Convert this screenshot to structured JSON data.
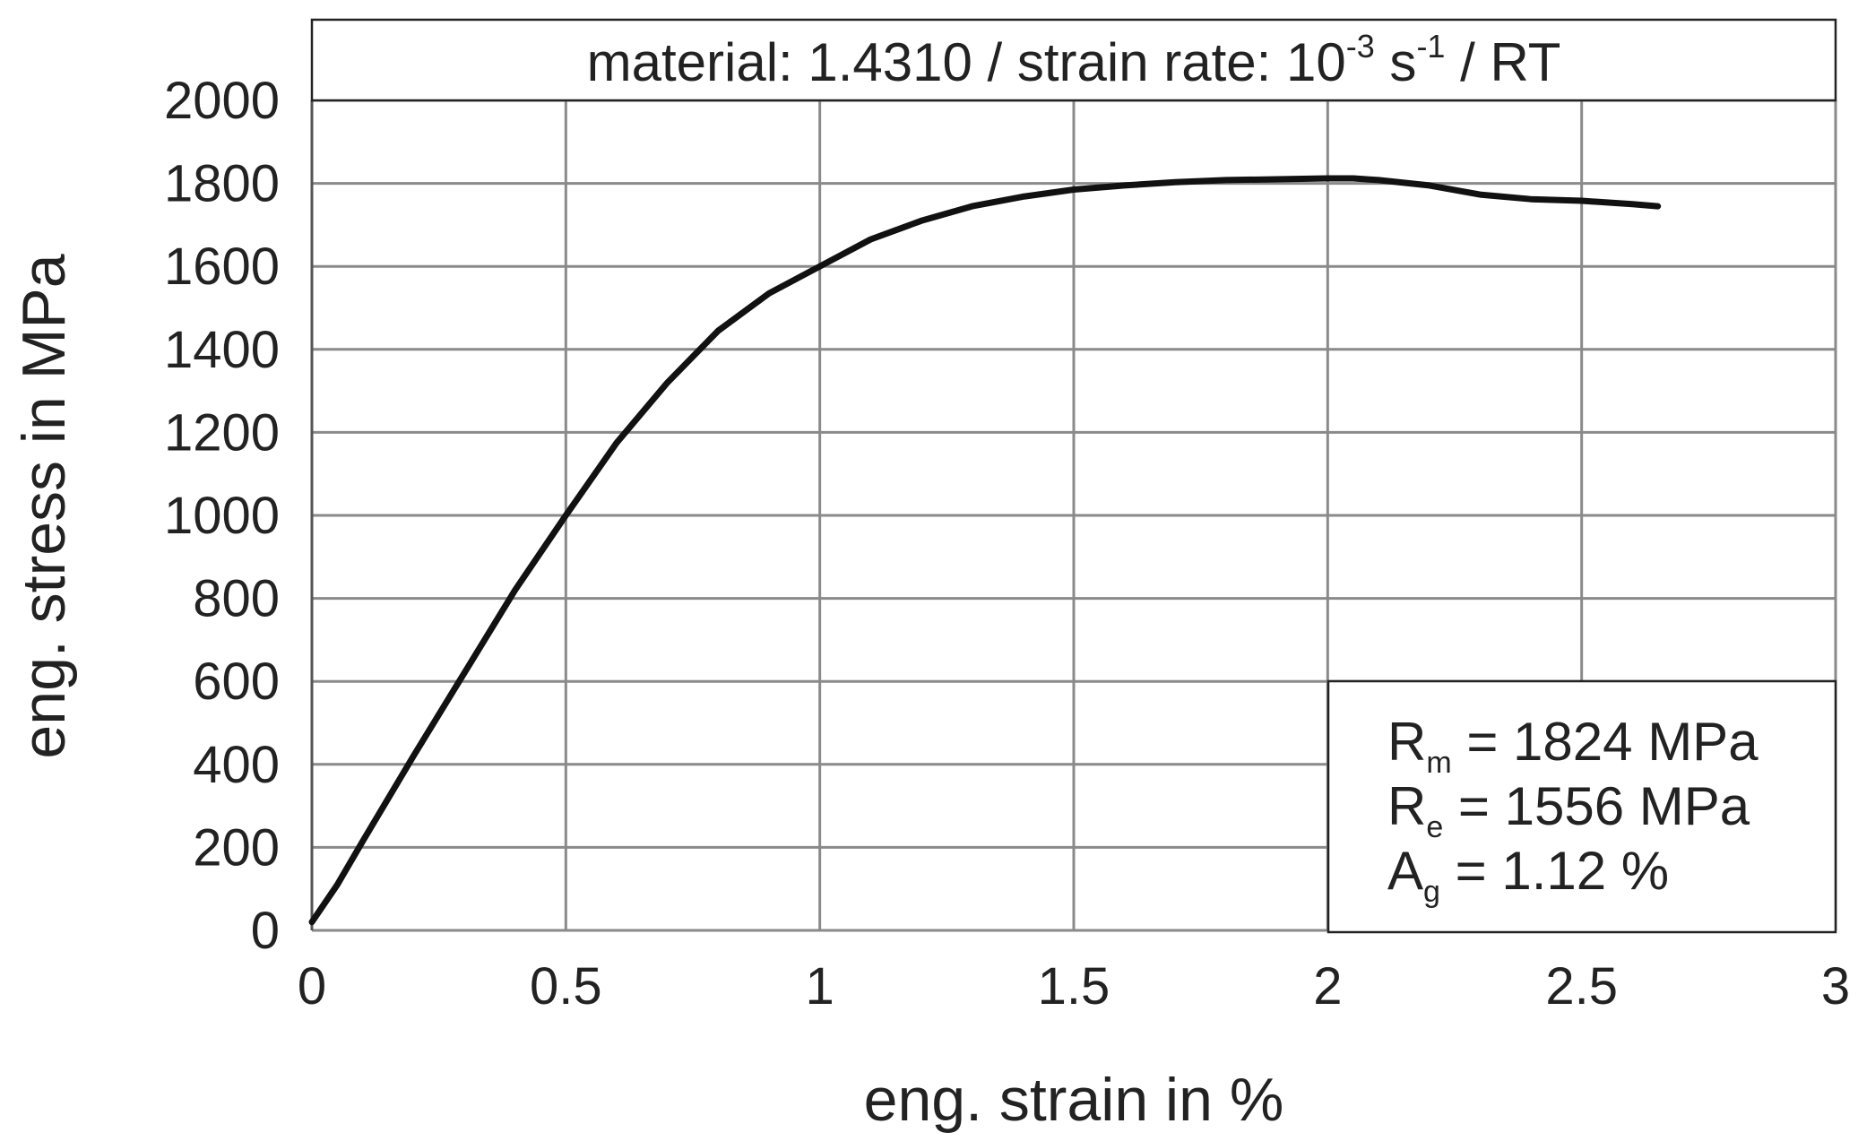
{
  "chart_data": {
    "type": "line",
    "title": {
      "prefix": "material: 1.4310 / strain rate: 10",
      "exp1": "-3",
      "mid": " s",
      "exp2": "-1",
      "suffix": " / RT"
    },
    "xlabel": "eng. strain in %",
    "ylabel": "eng. stress in MPa",
    "xlim": [
      0,
      3
    ],
    "ylim": [
      0,
      2000
    ],
    "xticks": [
      0,
      0.5,
      1,
      1.5,
      2,
      2.5,
      3
    ],
    "xtick_labels": [
      "0",
      "0.5",
      "1",
      "1.5",
      "2",
      "2.5",
      "3"
    ],
    "yticks": [
      0,
      200,
      400,
      600,
      800,
      1000,
      1200,
      1400,
      1600,
      1800,
      2000
    ],
    "ytick_labels": [
      "0",
      "200",
      "400",
      "600",
      "800",
      "1000",
      "1200",
      "1400",
      "1600",
      "1800",
      "2000"
    ],
    "grid": true,
    "series": [
      {
        "color": "#111111",
        "x": [
          0,
          0.05,
          0.1,
          0.2,
          0.3,
          0.4,
          0.5,
          0.6,
          0.7,
          0.8,
          0.9,
          1.0,
          1.1,
          1.2,
          1.3,
          1.4,
          1.5,
          1.6,
          1.7,
          1.8,
          1.9,
          2.0,
          2.05,
          2.1,
          2.2,
          2.3,
          2.4,
          2.5,
          2.6,
          2.65
        ],
        "y": [
          20,
          110,
          215,
          420,
          620,
          820,
          1000,
          1175,
          1320,
          1445,
          1535,
          1600,
          1665,
          1710,
          1745,
          1768,
          1785,
          1795,
          1803,
          1808,
          1810,
          1812,
          1812,
          1808,
          1795,
          1773,
          1762,
          1758,
          1750,
          1745
        ]
      }
    ],
    "annotation": {
      "lines": [
        {
          "main": "R",
          "sub": "m",
          "text": " = 1824 MPa"
        },
        {
          "main": "R",
          "sub": "e",
          "text": " = 1556 MPa"
        },
        {
          "main": "A",
          "sub": "g",
          "text": " = 1.12 %"
        }
      ]
    }
  }
}
